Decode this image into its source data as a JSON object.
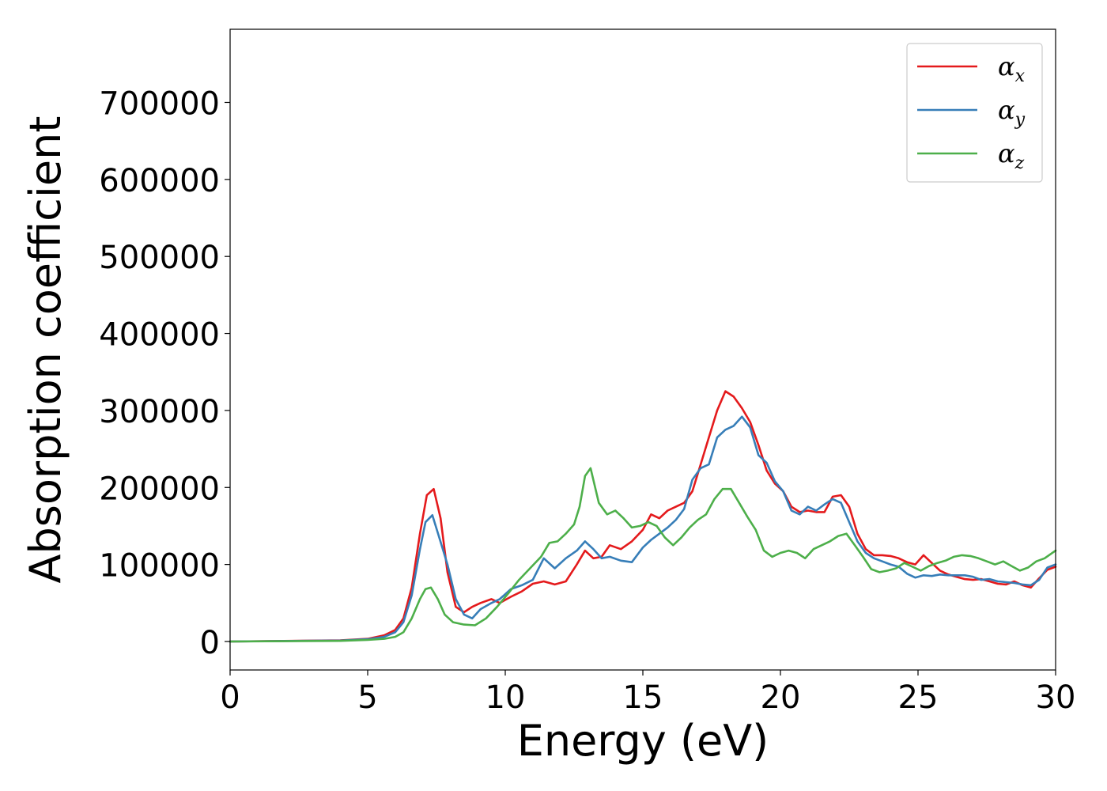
{
  "chart_data": {
    "type": "line",
    "xlabel": "Energy (eV)",
    "ylabel": "Absorption coefficient",
    "xlim": [
      0,
      30
    ],
    "ylim": [
      -37000,
      795000
    ],
    "xticks": [
      0,
      5,
      10,
      15,
      20,
      25,
      30
    ],
    "yticks": [
      0,
      100000,
      200000,
      300000,
      400000,
      500000,
      600000,
      700000
    ],
    "grid": false,
    "legend_position": "top-right",
    "series": [
      {
        "name": "α_x",
        "legend_base": "α",
        "legend_sub": "x",
        "color": "#e41a1c",
        "x": [
          0,
          4,
          5,
          5.6,
          6.0,
          6.3,
          6.6,
          6.9,
          7.15,
          7.4,
          7.65,
          7.9,
          8.2,
          8.5,
          8.8,
          9.1,
          9.5,
          9.8,
          10.2,
          10.6,
          11.0,
          11.4,
          11.8,
          12.2,
          12.6,
          12.9,
          13.2,
          13.5,
          13.8,
          14.2,
          14.6,
          15.0,
          15.3,
          15.6,
          15.9,
          16.2,
          16.5,
          16.8,
          17.1,
          17.4,
          17.7,
          18.0,
          18.3,
          18.6,
          18.9,
          19.2,
          19.5,
          19.8,
          20.1,
          20.4,
          20.7,
          21.0,
          21.3,
          21.6,
          21.9,
          22.2,
          22.5,
          22.8,
          23.1,
          23.4,
          23.7,
          24.0,
          24.3,
          24.6,
          24.9,
          25.2,
          25.5,
          25.8,
          26.1,
          26.4,
          26.7,
          27.0,
          27.3,
          27.6,
          27.9,
          28.2,
          28.5,
          28.8,
          29.1,
          29.4,
          29.7,
          30
        ],
        "y": [
          0,
          1500,
          3500,
          8000,
          15000,
          30000,
          70000,
          140000,
          190000,
          198000,
          160000,
          90000,
          45000,
          38000,
          45000,
          50000,
          55000,
          50000,
          58000,
          65000,
          75000,
          78000,
          74000,
          78000,
          100000,
          118000,
          108000,
          110000,
          125000,
          120000,
          130000,
          145000,
          165000,
          160000,
          170000,
          175000,
          180000,
          195000,
          230000,
          265000,
          300000,
          325000,
          318000,
          303000,
          285000,
          255000,
          222000,
          205000,
          195000,
          175000,
          168000,
          170000,
          168000,
          168000,
          188000,
          190000,
          175000,
          140000,
          120000,
          112000,
          112000,
          111000,
          108000,
          103000,
          100000,
          112000,
          102000,
          92000,
          87000,
          84000,
          81000,
          80000,
          81000,
          78000,
          75000,
          74000,
          78000,
          73000,
          70000,
          82000,
          93000,
          97000
        ]
      },
      {
        "name": "α_y",
        "legend_base": "α",
        "legend_sub": "y",
        "color": "#377eb8",
        "x": [
          0,
          4,
          5,
          5.6,
          6.0,
          6.3,
          6.6,
          6.9,
          7.1,
          7.35,
          7.6,
          7.9,
          8.2,
          8.5,
          8.8,
          9.1,
          9.5,
          9.8,
          10.2,
          10.6,
          11.0,
          11.4,
          11.8,
          12.2,
          12.6,
          12.9,
          13.2,
          13.5,
          13.8,
          14.2,
          14.6,
          15.0,
          15.3,
          15.6,
          15.9,
          16.2,
          16.5,
          16.8,
          17.1,
          17.4,
          17.7,
          18.0,
          18.3,
          18.6,
          18.9,
          19.2,
          19.5,
          19.8,
          20.1,
          20.4,
          20.7,
          21.0,
          21.3,
          21.6,
          21.9,
          22.2,
          22.5,
          22.8,
          23.1,
          23.4,
          23.7,
          24.0,
          24.3,
          24.6,
          24.9,
          25.2,
          25.5,
          25.8,
          26.1,
          26.4,
          26.7,
          27.0,
          27.3,
          27.6,
          27.9,
          28.2,
          28.5,
          28.8,
          29.1,
          29.4,
          29.7,
          30
        ],
        "y": [
          0,
          1200,
          3000,
          6000,
          12000,
          25000,
          60000,
          120000,
          155000,
          164000,
          135000,
          100000,
          55000,
          35000,
          30000,
          42000,
          50000,
          55000,
          68000,
          73000,
          80000,
          108000,
          95000,
          108000,
          118000,
          130000,
          120000,
          108000,
          110000,
          105000,
          103000,
          122000,
          132000,
          140000,
          148000,
          158000,
          172000,
          210000,
          225000,
          230000,
          265000,
          275000,
          280000,
          292000,
          278000,
          242000,
          232000,
          208000,
          195000,
          170000,
          165000,
          175000,
          170000,
          178000,
          185000,
          180000,
          155000,
          130000,
          115000,
          108000,
          104000,
          100000,
          97000,
          88000,
          83000,
          86000,
          85000,
          87000,
          86000,
          86000,
          86000,
          84000,
          80000,
          81000,
          78000,
          77000,
          76000,
          74000,
          73000,
          80000,
          96000,
          100000
        ]
      },
      {
        "name": "α_z",
        "legend_base": "α",
        "legend_sub": "z",
        "color": "#4daf4a",
        "x": [
          0,
          4,
          5,
          5.6,
          6.0,
          6.3,
          6.6,
          6.9,
          7.1,
          7.3,
          7.55,
          7.8,
          8.1,
          8.5,
          8.9,
          9.3,
          9.7,
          10.1,
          10.5,
          10.9,
          11.3,
          11.6,
          11.9,
          12.2,
          12.5,
          12.7,
          12.9,
          13.1,
          13.4,
          13.7,
          14.0,
          14.3,
          14.6,
          14.9,
          15.2,
          15.5,
          15.8,
          16.1,
          16.4,
          16.7,
          17.0,
          17.3,
          17.6,
          17.9,
          18.2,
          18.5,
          18.8,
          19.1,
          19.4,
          19.7,
          20.0,
          20.3,
          20.6,
          20.9,
          21.2,
          21.5,
          21.8,
          22.1,
          22.4,
          22.7,
          23.0,
          23.3,
          23.6,
          23.9,
          24.2,
          24.5,
          24.8,
          25.1,
          25.4,
          25.7,
          26.0,
          26.3,
          26.6,
          26.9,
          27.2,
          27.5,
          27.8,
          28.1,
          28.4,
          28.7,
          29.0,
          29.3,
          29.6,
          30
        ],
        "y": [
          0,
          800,
          2000,
          3500,
          6000,
          12000,
          30000,
          55000,
          68000,
          70000,
          55000,
          35000,
          25000,
          22000,
          21000,
          30000,
          45000,
          62000,
          80000,
          95000,
          110000,
          128000,
          130000,
          140000,
          152000,
          175000,
          215000,
          225000,
          180000,
          165000,
          170000,
          160000,
          148000,
          150000,
          155000,
          150000,
          135000,
          125000,
          135000,
          148000,
          158000,
          165000,
          185000,
          198000,
          198000,
          180000,
          162000,
          145000,
          118000,
          110000,
          115000,
          118000,
          115000,
          108000,
          120000,
          125000,
          130000,
          137000,
          140000,
          125000,
          110000,
          94000,
          90000,
          92000,
          95000,
          102000,
          97000,
          92000,
          98000,
          102000,
          105000,
          110000,
          112000,
          111000,
          108000,
          104000,
          100000,
          104000,
          98000,
          92000,
          96000,
          104000,
          108000,
          118000
        ]
      }
    ]
  }
}
